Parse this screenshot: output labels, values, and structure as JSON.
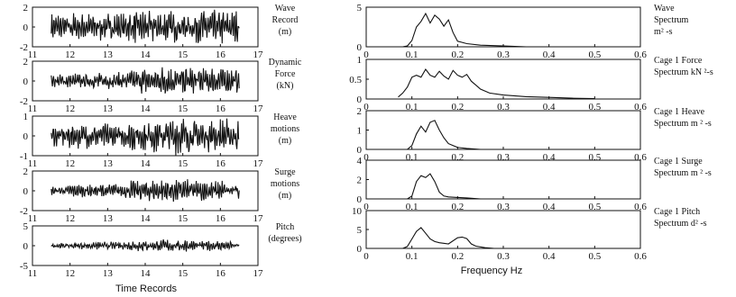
{
  "chart_data": [
    {
      "type": "line",
      "group": "time",
      "xlim": [
        11,
        17
      ],
      "ylim": [
        -2,
        2
      ],
      "xticks": [
        "11",
        "12",
        "13",
        "14",
        "15",
        "16",
        "17"
      ],
      "yticks": [
        "2",
        "0",
        "-2"
      ],
      "label_lines": [
        "Wave",
        "Record",
        "(m)"
      ],
      "series": [
        {
          "start": 11.5,
          "end": 16.5,
          "amplitude": [
            1.2,
            1.3,
            1.3,
            1.5,
            1.5,
            1.6,
            1.5
          ]
        }
      ]
    },
    {
      "type": "line",
      "group": "time",
      "xlim": [
        11,
        17
      ],
      "ylim": [
        -2,
        2
      ],
      "xticks": [
        "11",
        "12",
        "13",
        "14",
        "15",
        "16",
        "17"
      ],
      "yticks": [
        "2",
        "0",
        "-2"
      ],
      "label_lines": [
        "Dynamic",
        "Force",
        "(kN)"
      ],
      "series": [
        {
          "start": 11.5,
          "end": 16.5,
          "amplitude": [
            0.6,
            0.7,
            0.8,
            1.2,
            1.4,
            1.3,
            1.2
          ]
        }
      ]
    },
    {
      "type": "line",
      "group": "time",
      "xlim": [
        11,
        17
      ],
      "ylim": [
        -1,
        1
      ],
      "xticks": [
        "11",
        "12",
        "13",
        "14",
        "15",
        "16",
        "17"
      ],
      "yticks": [
        "1",
        "0",
        "-1"
      ],
      "label_lines": [
        "Heave",
        "motions",
        "(m)"
      ],
      "series": [
        {
          "start": 11.5,
          "end": 16.5,
          "amplitude": [
            0.5,
            0.6,
            0.6,
            0.8,
            0.9,
            0.8,
            0.8
          ]
        }
      ]
    },
    {
      "type": "line",
      "group": "time",
      "xlim": [
        11,
        17
      ],
      "ylim": [
        -2,
        2
      ],
      "xticks": [
        "11",
        "12",
        "13",
        "14",
        "15",
        "16",
        "17"
      ],
      "yticks": [
        "2",
        "0",
        "-2"
      ],
      "label_lines": [
        "Surge",
        "motions",
        "(m)"
      ],
      "series": [
        {
          "start": 11.5,
          "end": 16.5,
          "amplitude": [
            0.4,
            0.6,
            0.7,
            1.0,
            1.2,
            1.0,
            0.8
          ]
        }
      ]
    },
    {
      "type": "line",
      "group": "time",
      "xlim": [
        11,
        17
      ],
      "ylim": [
        -5,
        5
      ],
      "xticks": [
        "11",
        "12",
        "13",
        "14",
        "15",
        "16",
        "17"
      ],
      "yticks": [
        "5",
        "0",
        "-5"
      ],
      "label_lines": [
        "Pitch",
        "(degrees)"
      ],
      "series": [
        {
          "start": 11.5,
          "end": 16.5,
          "amplitude": [
            0.6,
            0.9,
            1.0,
            1.3,
            1.5,
            1.2,
            1.0
          ]
        }
      ]
    },
    {
      "type": "line",
      "group": "freq",
      "xlim": [
        0,
        0.6
      ],
      "ylim": [
        0,
        5
      ],
      "xticks": [
        "0",
        "0.1",
        "0.2",
        "0.3",
        "0.4",
        "0.5",
        "0.6"
      ],
      "yticks": [
        "5",
        "0"
      ],
      "label_lines": [
        "Wave",
        "Spectrum",
        "m² -s"
      ],
      "series": [
        {
          "x": [
            0.08,
            0.09,
            0.1,
            0.11,
            0.12,
            0.13,
            0.14,
            0.15,
            0.16,
            0.17,
            0.18,
            0.19,
            0.2,
            0.22,
            0.25,
            0.3,
            0.35
          ],
          "y": [
            0,
            0.1,
            0.8,
            2.5,
            3.2,
            4.2,
            3.0,
            4.0,
            3.5,
            2.6,
            3.4,
            1.8,
            0.7,
            0.4,
            0.2,
            0.1,
            0
          ]
        }
      ]
    },
    {
      "type": "line",
      "group": "freq",
      "xlim": [
        0,
        0.6
      ],
      "ylim": [
        0,
        1
      ],
      "xticks": [
        "0",
        "0.1",
        "0.2",
        "0.3",
        "0.4",
        "0.5",
        "0.6"
      ],
      "yticks": [
        "1",
        "0.5",
        "0"
      ],
      "label_lines": [
        "Cage 1 Force",
        "Spectrum kN ²-s"
      ],
      "series": [
        {
          "x": [
            0.07,
            0.08,
            0.09,
            0.1,
            0.11,
            0.12,
            0.13,
            0.14,
            0.15,
            0.16,
            0.17,
            0.18,
            0.19,
            0.2,
            0.21,
            0.22,
            0.23,
            0.24,
            0.25,
            0.27,
            0.3,
            0.35,
            0.4,
            0.45,
            0.5
          ],
          "y": [
            0.05,
            0.15,
            0.3,
            0.55,
            0.6,
            0.55,
            0.75,
            0.6,
            0.55,
            0.7,
            0.58,
            0.5,
            0.72,
            0.6,
            0.55,
            0.62,
            0.45,
            0.35,
            0.25,
            0.15,
            0.1,
            0.06,
            0.04,
            0.02,
            0.01
          ]
        }
      ]
    },
    {
      "type": "line",
      "group": "freq",
      "xlim": [
        0,
        0.6
      ],
      "ylim": [
        0,
        2
      ],
      "xticks": [
        "0",
        "0.1",
        "0.2",
        "0.3",
        "0.4",
        "0.5",
        "0.6"
      ],
      "yticks": [
        "2",
        "1",
        "0"
      ],
      "label_lines": [
        "Cage 1 Heave",
        "Spectrum m ² -s"
      ],
      "series": [
        {
          "x": [
            0.09,
            0.1,
            0.11,
            0.12,
            0.13,
            0.14,
            0.15,
            0.16,
            0.17,
            0.18,
            0.2,
            0.22,
            0.25
          ],
          "y": [
            0,
            0.2,
            0.8,
            1.2,
            0.9,
            1.4,
            1.5,
            1.0,
            0.6,
            0.3,
            0.1,
            0.05,
            0
          ]
        }
      ]
    },
    {
      "type": "line",
      "group": "freq",
      "xlim": [
        0,
        0.6
      ],
      "ylim": [
        0,
        4
      ],
      "xticks": [
        "0",
        "0.1",
        "0.2",
        "0.3",
        "0.4",
        "0.5",
        "0.6"
      ],
      "yticks": [
        "4",
        "2",
        "0"
      ],
      "label_lines": [
        "Cage 1 Surge",
        "Spectrum m ² -s"
      ],
      "series": [
        {
          "x": [
            0.09,
            0.1,
            0.11,
            0.12,
            0.13,
            0.14,
            0.15,
            0.16,
            0.17,
            0.18,
            0.2,
            0.22,
            0.25
          ],
          "y": [
            0,
            0.3,
            1.8,
            2.4,
            2.2,
            2.6,
            1.8,
            0.7,
            0.3,
            0.2,
            0.15,
            0.1,
            0
          ]
        }
      ]
    },
    {
      "type": "line",
      "group": "freq",
      "xlim": [
        0,
        0.6
      ],
      "ylim": [
        0,
        10
      ],
      "xticks": [
        "0",
        "0.1",
        "0.2",
        "0.3",
        "0.4",
        "0.5",
        "0.6"
      ],
      "yticks": [
        "10",
        "5",
        "0"
      ],
      "label_lines": [
        "Cage 1 Pitch",
        "Spectrum d² -s"
      ],
      "series": [
        {
          "x": [
            0.08,
            0.09,
            0.1,
            0.11,
            0.12,
            0.13,
            0.14,
            0.15,
            0.16,
            0.18,
            0.2,
            0.21,
            0.22,
            0.23,
            0.24,
            0.26,
            0.28
          ],
          "y": [
            0,
            0.5,
            2.5,
            4.5,
            5.5,
            4.0,
            2.5,
            1.8,
            1.5,
            1.2,
            2.8,
            3.0,
            2.6,
            1.2,
            0.6,
            0.2,
            0
          ]
        }
      ]
    }
  ],
  "captions": {
    "time_xlabel": "Time Records",
    "freq_xlabel": "Frequency Hz"
  }
}
